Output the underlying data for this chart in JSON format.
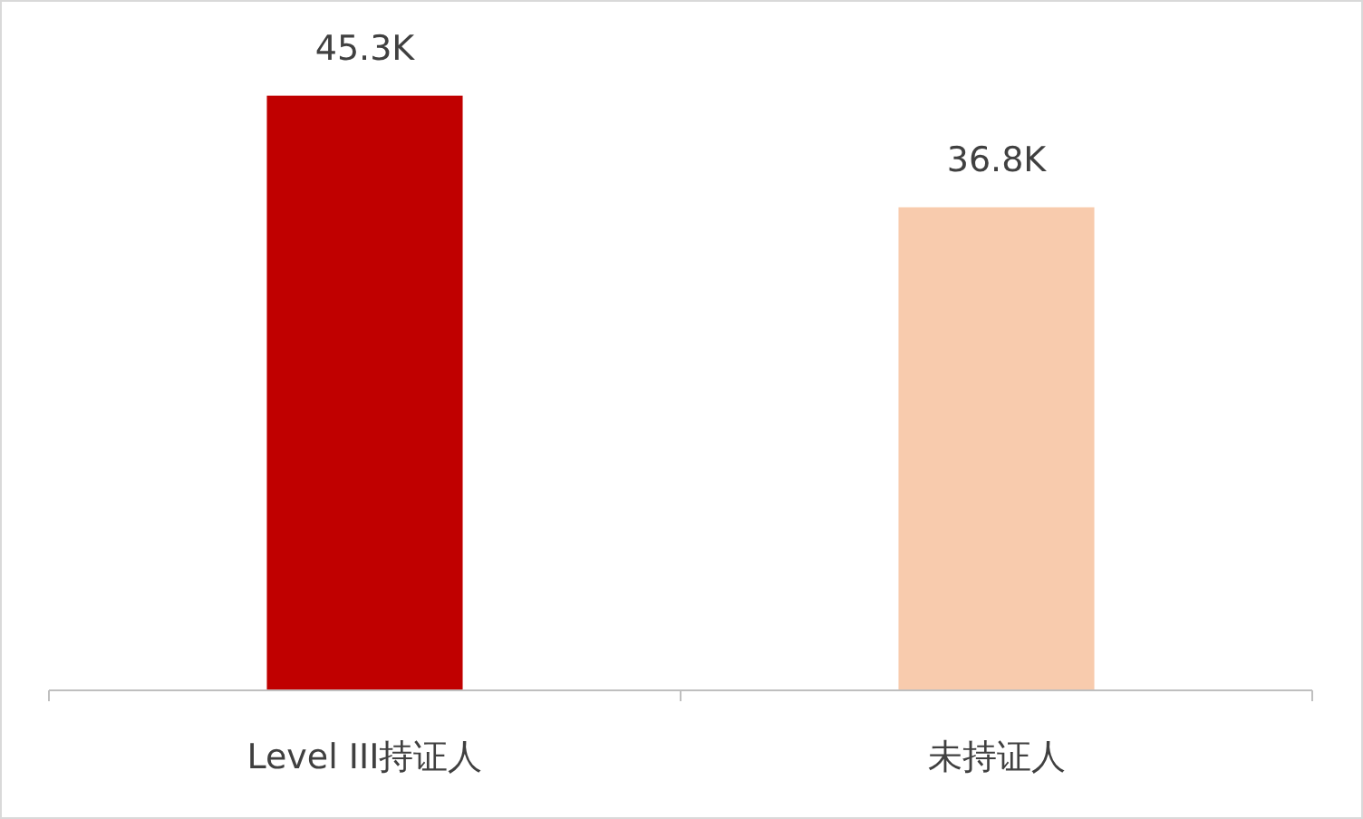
{
  "chart_data": {
    "type": "bar",
    "categories": [
      "Level III持证人",
      "未持证人"
    ],
    "values": [
      45.3,
      36.8
    ],
    "colors": [
      "#c00000",
      "#f8cbad"
    ],
    "value_labels": [
      "45.3K",
      "36.8K"
    ],
    "grid": false
  }
}
